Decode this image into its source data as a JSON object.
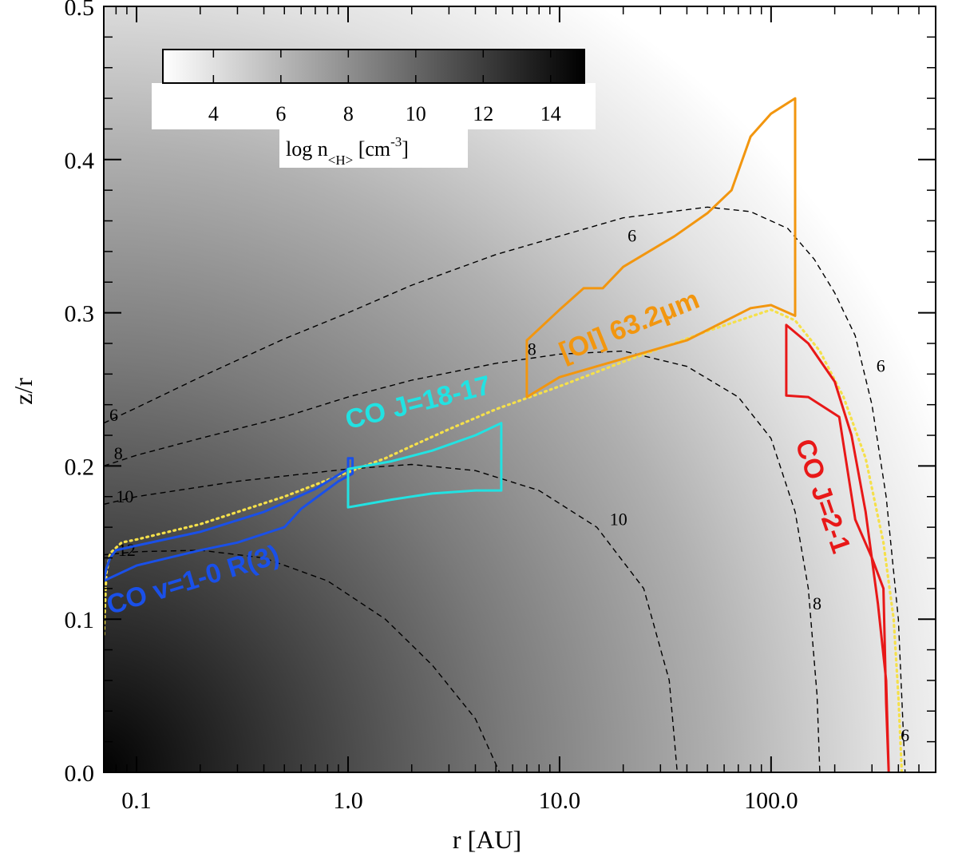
{
  "chart_data": {
    "type": "heatmap",
    "title": "",
    "xlabel": "r [AU]",
    "ylabel": "z/r",
    "xscale": "log",
    "xlim": [
      0.07,
      600
    ],
    "ylim": [
      0.0,
      0.5
    ],
    "x_ticks": [
      0.1,
      1.0,
      10.0,
      100.0
    ],
    "x_tick_labels": [
      "0.1",
      "1.0",
      "10.0",
      "100.0"
    ],
    "y_ticks": [
      0.0,
      0.1,
      0.2,
      0.3,
      0.4,
      0.5
    ],
    "y_tick_labels": [
      "0.0",
      "0.1",
      "0.2",
      "0.3",
      "0.4",
      "0.5"
    ],
    "colorscale": "gray_reversed",
    "colorbar": {
      "range": [
        2.5,
        15
      ],
      "ticks": [
        4,
        6,
        8,
        10,
        12,
        14
      ],
      "tick_labels": [
        "4",
        "6",
        "8",
        "10",
        "12",
        "14"
      ],
      "label_main": "log n",
      "label_sub": "<H>",
      "label_unit": " [cm",
      "label_exp": "-3",
      "label_close": "]",
      "placement": "top-left"
    },
    "contours": [
      {
        "level": "6",
        "points": [
          [
            0.07,
            0.228
          ],
          [
            0.1,
            0.238
          ],
          [
            0.2,
            0.258
          ],
          [
            0.5,
            0.283
          ],
          [
            1,
            0.3
          ],
          [
            2,
            0.318
          ],
          [
            5,
            0.338
          ],
          [
            10,
            0.35
          ],
          [
            20,
            0.362
          ],
          [
            50,
            0.369
          ],
          [
            80,
            0.366
          ],
          [
            120,
            0.355
          ],
          [
            160,
            0.335
          ],
          [
            200,
            0.313
          ],
          [
            250,
            0.285
          ],
          [
            300,
            0.24
          ],
          [
            350,
            0.18
          ],
          [
            400,
            0.1
          ],
          [
            430,
            0.0
          ]
        ]
      },
      {
        "level": "8",
        "points": [
          [
            0.07,
            0.2
          ],
          [
            0.1,
            0.207
          ],
          [
            0.2,
            0.218
          ],
          [
            0.5,
            0.232
          ],
          [
            1,
            0.245
          ],
          [
            2,
            0.256
          ],
          [
            5,
            0.267
          ],
          [
            10,
            0.273
          ],
          [
            20,
            0.275
          ],
          [
            40,
            0.265
          ],
          [
            70,
            0.245
          ],
          [
            100,
            0.218
          ],
          [
            130,
            0.17
          ],
          [
            150,
            0.12
          ],
          [
            165,
            0.05
          ],
          [
            170,
            0.0
          ]
        ]
      },
      {
        "level": "10",
        "points": [
          [
            0.07,
            0.175
          ],
          [
            0.1,
            0.18
          ],
          [
            0.3,
            0.19
          ],
          [
            1,
            0.198
          ],
          [
            2,
            0.201
          ],
          [
            4,
            0.197
          ],
          [
            8,
            0.184
          ],
          [
            15,
            0.16
          ],
          [
            25,
            0.12
          ],
          [
            33,
            0.06
          ],
          [
            36,
            0.0
          ]
        ]
      },
      {
        "level": "12",
        "points": [
          [
            0.07,
            0.142
          ],
          [
            0.1,
            0.144
          ],
          [
            0.2,
            0.145
          ],
          [
            0.4,
            0.14
          ],
          [
            0.8,
            0.125
          ],
          [
            1.5,
            0.1
          ],
          [
            2.5,
            0.07
          ],
          [
            4,
            0.035
          ],
          [
            5.2,
            0.0
          ]
        ]
      }
    ],
    "contour_labels": [
      {
        "text": "6",
        "x": 0.078,
        "y": 0.233
      },
      {
        "text": "8",
        "x": 0.082,
        "y": 0.208
      },
      {
        "text": "10",
        "x": 0.088,
        "y": 0.18
      },
      {
        "text": "12",
        "x": 0.09,
        "y": 0.145
      },
      {
        "text": "6",
        "x": 22,
        "y": 0.35
      },
      {
        "text": "8",
        "x": 7.4,
        "y": 0.276
      },
      {
        "text": "10",
        "x": 19,
        "y": 0.165
      },
      {
        "text": "8",
        "x": 165,
        "y": 0.11
      },
      {
        "text": "6",
        "x": 330,
        "y": 0.265
      },
      {
        "text": "6",
        "x": 430,
        "y": 0.024
      }
    ],
    "boundary": {
      "name": "dotted",
      "color": "#f5e04a",
      "points": [
        [
          0.07,
          0.09
        ],
        [
          0.072,
          0.13
        ],
        [
          0.075,
          0.143
        ],
        [
          0.085,
          0.15
        ],
        [
          0.1,
          0.152
        ],
        [
          0.2,
          0.162
        ],
        [
          0.5,
          0.18
        ],
        [
          1,
          0.196
        ],
        [
          1.5,
          0.205
        ],
        [
          2,
          0.213
        ],
        [
          3,
          0.224
        ],
        [
          5,
          0.237
        ],
        [
          10,
          0.252
        ],
        [
          20,
          0.268
        ],
        [
          50,
          0.288
        ],
        [
          100,
          0.302
        ],
        [
          130,
          0.295
        ],
        [
          170,
          0.275
        ],
        [
          220,
          0.245
        ],
        [
          280,
          0.205
        ],
        [
          340,
          0.15
        ],
        [
          380,
          0.1
        ],
        [
          400,
          0.05
        ],
        [
          415,
          0.0
        ]
      ]
    },
    "regions": [
      {
        "name": "CO v=1-0 R(3)",
        "color": "#1a50e8",
        "label_x": 0.075,
        "label_y": 0.103,
        "label_rotate": -17,
        "polygon": [
          [
            0.07,
            0.125
          ],
          [
            0.072,
            0.133
          ],
          [
            0.075,
            0.14
          ],
          [
            0.08,
            0.145
          ],
          [
            0.1,
            0.148
          ],
          [
            0.2,
            0.157
          ],
          [
            0.4,
            0.17
          ],
          [
            0.7,
            0.185
          ],
          [
            1.0,
            0.198
          ],
          [
            1.0,
            0.205
          ],
          [
            1.05,
            0.205
          ],
          [
            1.05,
            0.195
          ],
          [
            0.9,
            0.19
          ],
          [
            0.6,
            0.172
          ],
          [
            0.5,
            0.16
          ],
          [
            0.45,
            0.158
          ],
          [
            0.3,
            0.15
          ],
          [
            0.2,
            0.145
          ],
          [
            0.1,
            0.135
          ],
          [
            0.07,
            0.125
          ]
        ]
      },
      {
        "name": "CO J=18-17",
        "color": "#22e2e2",
        "label_x": 1.0,
        "label_y": 0.224,
        "label_rotate": -14,
        "polygon": [
          [
            1.0,
            0.198
          ],
          [
            1.6,
            0.203
          ],
          [
            2.5,
            0.21
          ],
          [
            4,
            0.22
          ],
          [
            5.3,
            0.228
          ],
          [
            5.3,
            0.184
          ],
          [
            4,
            0.184
          ],
          [
            2.5,
            0.182
          ],
          [
            1.6,
            0.178
          ],
          [
            1.0,
            0.173
          ],
          [
            1.0,
            0.198
          ]
        ]
      },
      {
        "name": "[OI] 63.2μm",
        "color": "#f2960f",
        "label_x": 10.5,
        "label_y": 0.268,
        "label_rotate": -22,
        "polygon": [
          [
            7,
            0.245
          ],
          [
            10,
            0.258
          ],
          [
            20,
            0.27
          ],
          [
            40,
            0.282
          ],
          [
            80,
            0.303
          ],
          [
            100,
            0.305
          ],
          [
            130,
            0.298
          ],
          [
            130,
            0.44
          ],
          [
            100,
            0.43
          ],
          [
            80,
            0.415
          ],
          [
            65,
            0.38
          ],
          [
            50,
            0.365
          ],
          [
            35,
            0.35
          ],
          [
            20,
            0.33
          ],
          [
            16,
            0.316
          ],
          [
            13,
            0.316
          ],
          [
            10,
            0.302
          ],
          [
            7,
            0.282
          ],
          [
            7,
            0.245
          ]
        ]
      },
      {
        "name": "CO J=2-1",
        "color": "#e81818",
        "label_x": 130,
        "label_y": 0.215,
        "label_rotate": 71,
        "polygon": [
          [
            118,
            0.292
          ],
          [
            150,
            0.28
          ],
          [
            200,
            0.255
          ],
          [
            240,
            0.22
          ],
          [
            280,
            0.17
          ],
          [
            320,
            0.11
          ],
          [
            350,
            0.06
          ],
          [
            360,
            0.0
          ],
          [
            350,
            0.045
          ],
          [
            340,
            0.12
          ],
          [
            300,
            0.14
          ],
          [
            250,
            0.165
          ],
          [
            210,
            0.232
          ],
          [
            150,
            0.245
          ],
          [
            118,
            0.246
          ],
          [
            118,
            0.292
          ]
        ]
      }
    ]
  }
}
